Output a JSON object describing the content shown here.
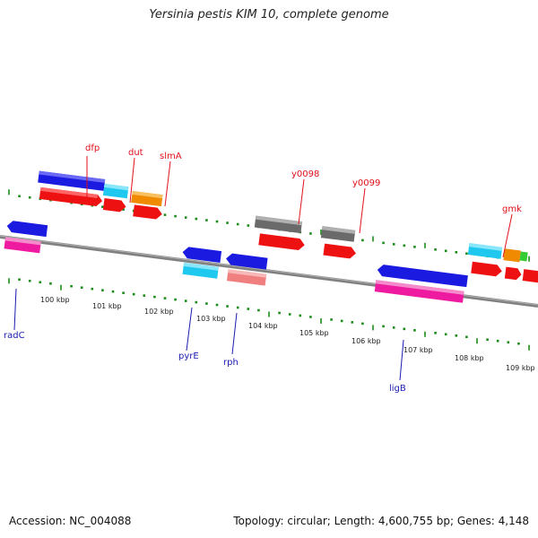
{
  "title": "Yersinia pestis KIM 10, complete genome",
  "footer": {
    "accession": "Accession: NC_004088",
    "topology": "Topology: circular; Length: 4,600,755 bp; Genes: 4,148"
  },
  "colors": {
    "backbone": "#808080",
    "tick": "#1a8c1a",
    "top_label": "#e0101a",
    "bottom_label": "#1a1ab0",
    "gene_red": "#ee1111",
    "gene_blue": "#1a1ae0",
    "gene_cyan": "#1ec8ee",
    "gene_orange": "#f08a00",
    "gene_gray": "#6a6a6a",
    "gene_pink": "#ee1aa0",
    "gene_salmon": "#f08080",
    "gene_green": "#33cc33"
  },
  "scale": {
    "tick_labels": [
      "100 kbp",
      "101 kbp",
      "102 kbp",
      "103 kbp",
      "104 kbp",
      "105 kbp",
      "106 kbp",
      "107 kbp",
      "108 kbp",
      "109 kbp"
    ]
  },
  "gene_labels_top": [
    "dfp",
    "dut",
    "slmA",
    "y0098",
    "y0099",
    "gmk"
  ],
  "gene_labels_bottom": [
    "radC",
    "pyrE",
    "rph",
    "ligB"
  ]
}
